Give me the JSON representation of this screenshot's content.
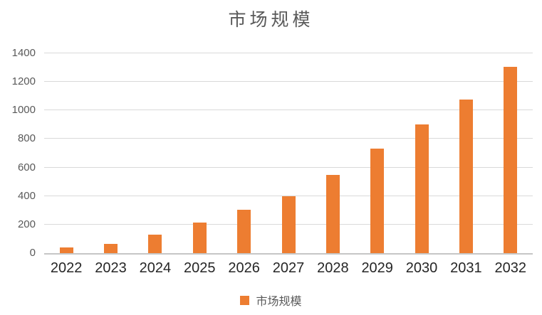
{
  "chart_data": {
    "type": "bar",
    "title": "市场规模",
    "series_name": "市场规模",
    "categories": [
      "2022",
      "2023",
      "2024",
      "2025",
      "2026",
      "2027",
      "2028",
      "2029",
      "2030",
      "2031",
      "2032"
    ],
    "values": [
      40,
      65,
      130,
      215,
      305,
      400,
      550,
      730,
      900,
      1075,
      1305
    ],
    "xlabel": "",
    "ylabel": "",
    "ylim": [
      0,
      1400
    ],
    "yticks": [
      0,
      200,
      400,
      600,
      800,
      1000,
      1200,
      1400
    ],
    "grid": true,
    "legend_position": "bottom",
    "colors": {
      "bar": "#ED7D31",
      "gridline": "#D9D9D9",
      "axis_line": "#C6C6C6",
      "title_text": "#595959",
      "ytick_text": "#595959",
      "xtick_text": "#262626",
      "legend_text": "#595959",
      "background": "#FFFFFF"
    }
  }
}
